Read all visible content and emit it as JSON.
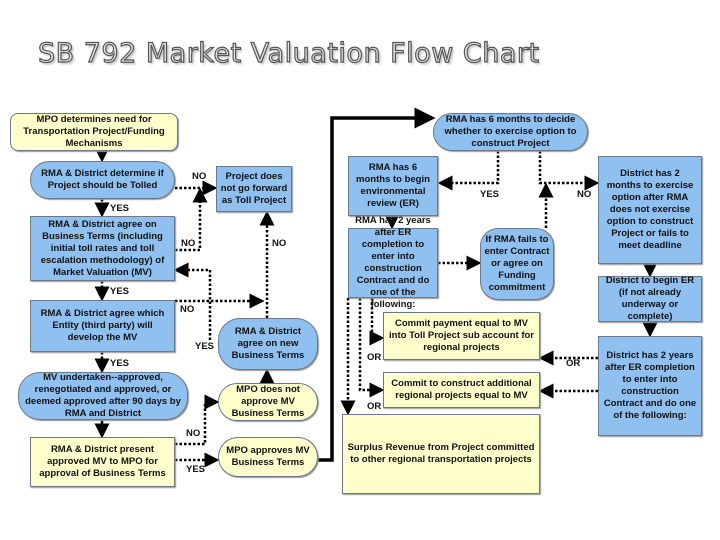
{
  "title": "SB 792 Market Valuation Flow Chart",
  "nodes": {
    "mpo_determines": "MPO determines need for Transportation Project/Funding Mechanisms",
    "determine_tolled": "RMA & District determine if Project should be Tolled",
    "not_forward": "Project does not go forward as Toll Project",
    "agree_terms": "RMA & District agree on Business Terms (including initial toll rates and toll escalation methodology) of Market Valuation (MV)",
    "agree_entity": "RMA & District agree which Entity (third party) will develop the MV",
    "new_terms": "RMA & District agree on new Business Terms",
    "mv_undertaken": "MV undertaken--approved, renegotiated and approved, or deemed approved after 90 days  by RMA and District",
    "mpo_not_approve": "MPO does not approve MV Business Terms",
    "present_mv": "RMA & District present approved MV to MPO for approval of Business Terms",
    "mpo_approves": "MPO approves MV Business Terms",
    "rma_decide": "RMA has 6 months to decide whether to exercise option to construct Project",
    "rma_begin_er": "RMA has 6 months to begin environmental review (ER)",
    "rma_2_years": "RMA has 2 years after ER completion to enter into construction Contract and do one of the following:",
    "rma_fails": "If RMA fails to enter Contract or agree on Funding commitment",
    "district_2_months": "District has 2 months to exercise option after RMA does not exercise option to construct Project or fails to meet deadline",
    "district_begin_er": "District to begin ER (if not already underway or complete)",
    "district_2_years": "District has 2 years after ER completion to enter into construction Contract and do one of the following:",
    "commit_payment": "Commit payment equal to MV into Toll Project sub account for regional projects",
    "commit_construct": "Commit to construct additional regional projects equal to MV",
    "surplus": "Surplus Revenue from Project committed to other regional transportation projects"
  },
  "labels": {
    "no1": "NO",
    "yes1": "YES",
    "no2": "NO",
    "no3": "NO",
    "yes2": "YES",
    "no4": "NO",
    "yes3": "YES",
    "yes4": "YES",
    "no5": "NO",
    "yes5": "YES",
    "yes6": "YES",
    "no6": "NO",
    "or1": "OR",
    "or2": "OR",
    "or3": "OR"
  },
  "colors": {
    "blue_box": "#8fc0f0",
    "yellow_box": "#ffffcc"
  }
}
